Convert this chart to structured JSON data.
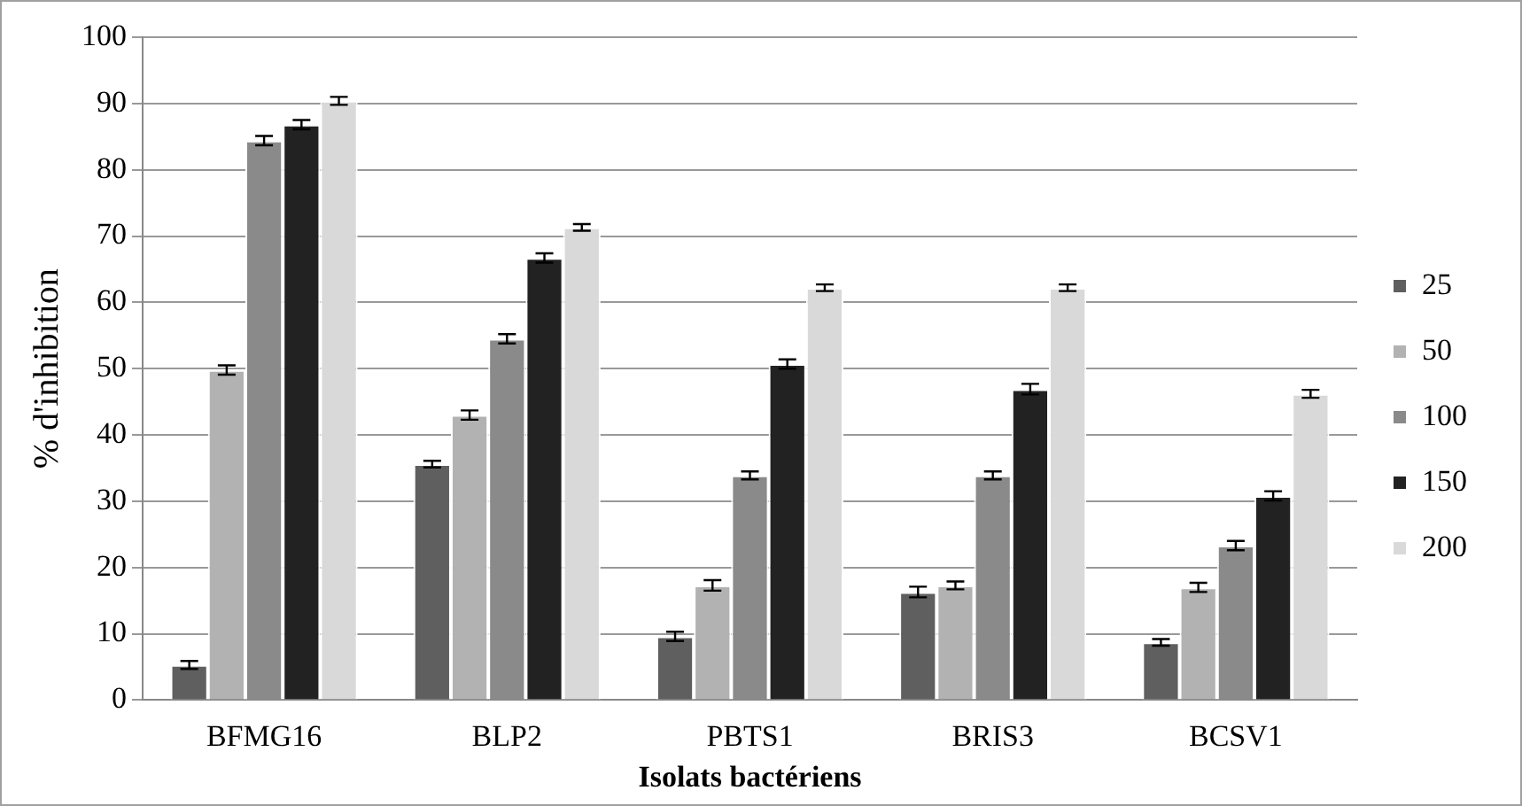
{
  "chart_data": {
    "type": "bar",
    "xlabel": "Isolats bactériens",
    "ylabel": "% d'inhibition",
    "categories": [
      "BFMG16",
      "BLP2",
      "PBTS1",
      "BRIS3",
      "BCSV1"
    ],
    "series": [
      {
        "name": "25",
        "color": "#5f5f5f",
        "values": [
          5.3,
          35.6,
          9.6,
          16.3,
          8.7
        ],
        "errors": [
          0.6,
          0.5,
          0.7,
          0.8,
          0.5
        ]
      },
      {
        "name": "50",
        "color": "#b2b2b2",
        "values": [
          49.8,
          43,
          17.3,
          17.3,
          17
        ],
        "errors": [
          0.7,
          0.7,
          0.8,
          0.6,
          0.7
        ]
      },
      {
        "name": "100",
        "color": "#8a8a8a",
        "values": [
          84.4,
          54.5,
          33.9,
          33.9,
          23.3
        ],
        "errors": [
          0.7,
          0.7,
          0.6,
          0.6,
          0.7
        ]
      },
      {
        "name": "150",
        "color": "#222222",
        "values": [
          86.8,
          66.7,
          50.7,
          46.9,
          30.8
        ],
        "errors": [
          0.7,
          0.7,
          0.7,
          0.8,
          0.7
        ]
      },
      {
        "name": "200",
        "color": "#d9d9d9",
        "values": [
          90.4,
          71.3,
          62.2,
          62.2,
          46.2
        ],
        "errors": [
          0.6,
          0.5,
          0.5,
          0.5,
          0.6
        ]
      }
    ],
    "ylim": [
      0,
      100
    ],
    "yticks": [
      0,
      10,
      20,
      30,
      40,
      50,
      60,
      70,
      80,
      90,
      100
    ],
    "grid": "y",
    "legend": "right"
  }
}
